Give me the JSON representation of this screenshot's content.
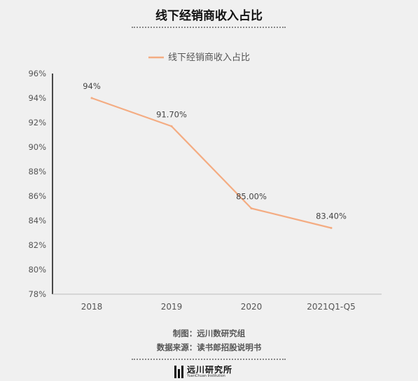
{
  "header": {
    "title": "线下经销商收入占比"
  },
  "chart_data": {
    "type": "line",
    "categories": [
      "2018",
      "2019",
      "2020",
      "2021Q1-Q5"
    ],
    "series": [
      {
        "name": "线下经销商收入占比",
        "values": [
          94,
          91.7,
          85.0,
          83.4
        ],
        "labels": [
          "94%",
          "91.70%",
          "85.00%",
          "83.40%"
        ],
        "color": "#f4ac82"
      }
    ],
    "ylim": [
      78,
      96
    ],
    "yticks": [
      "78%",
      "80%",
      "82%",
      "84%",
      "86%",
      "88%",
      "90%",
      "92%",
      "94%",
      "96%"
    ],
    "ytick_values": [
      78,
      80,
      82,
      84,
      86,
      88,
      90,
      92,
      94,
      96
    ],
    "legend": "top",
    "grid": false
  },
  "footer": {
    "credit": "制图：远川数研究组",
    "source": "数据来源：读书郎招股说明书",
    "logo_cn": "远川研究所",
    "logo_en": "YuanChuan Institution"
  }
}
